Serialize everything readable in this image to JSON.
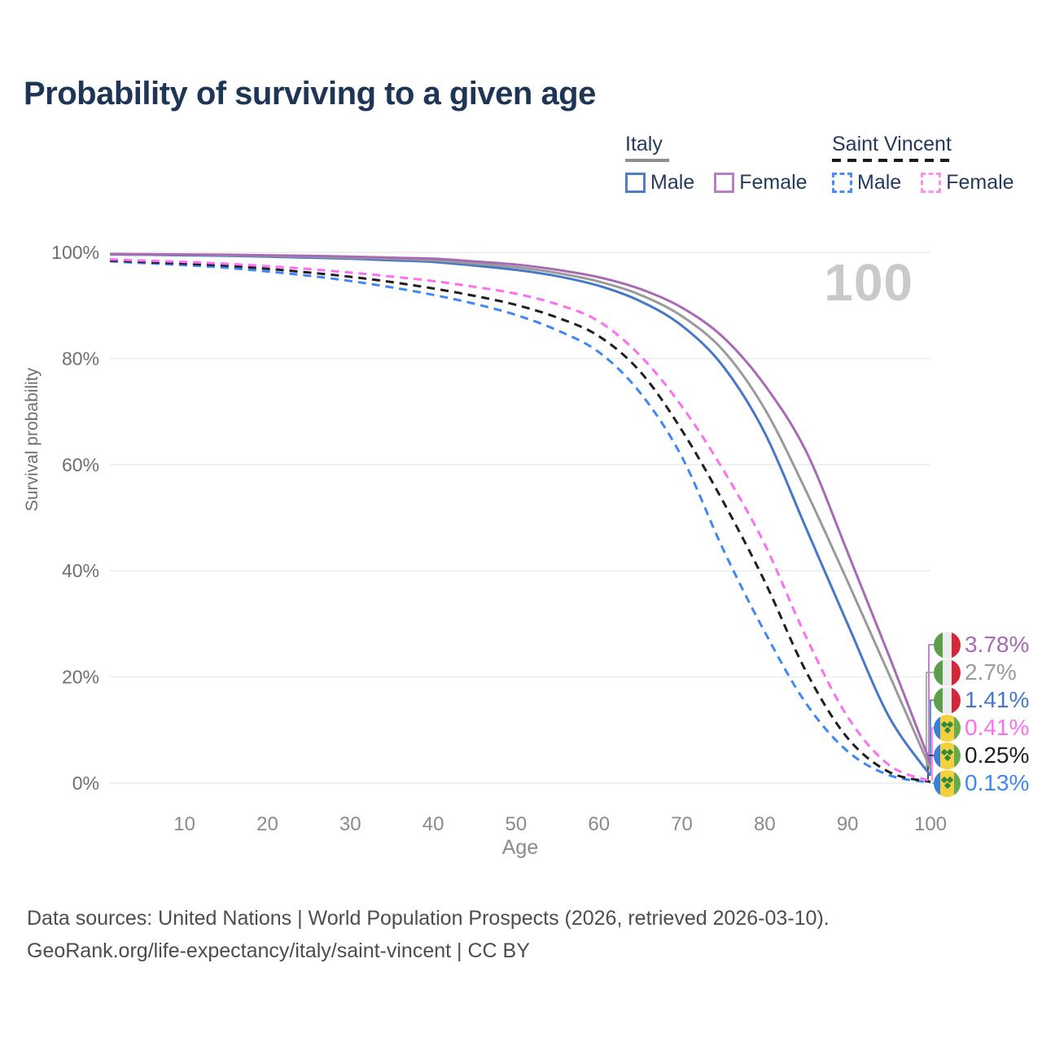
{
  "title": "Probability of surviving to a given age",
  "watermark": "100",
  "legend": {
    "groups": [
      {
        "label": "Italy",
        "line_style": "solid",
        "items": [
          {
            "label": "Male",
            "color": "#4e7fc4"
          },
          {
            "label": "Female",
            "color": "#b77fc4"
          }
        ]
      },
      {
        "label": "Saint Vincent",
        "line_style": "dashed",
        "items": [
          {
            "label": "Male",
            "color": "#4a8ef5"
          },
          {
            "label": "Female",
            "color": "#fb90ef"
          }
        ]
      }
    ]
  },
  "chart_data": {
    "type": "line",
    "title": "Probability of surviving to a given age",
    "xlabel": "Age",
    "ylabel": "Survival probability",
    "xlim": [
      1,
      100
    ],
    "ylim": [
      0,
      100
    ],
    "x_ticks": [
      10,
      20,
      30,
      40,
      50,
      60,
      70,
      80,
      90,
      100
    ],
    "y_ticks": [
      {
        "value": 0,
        "label": "0%"
      },
      {
        "value": 20,
        "label": "20%"
      },
      {
        "value": 40,
        "label": "40%"
      },
      {
        "value": 60,
        "label": "60%"
      },
      {
        "value": 80,
        "label": "80%"
      },
      {
        "value": 100,
        "label": "100%"
      }
    ],
    "grid": "horizontal",
    "legend_position": "top-right",
    "hover_age": "100",
    "x": [
      1,
      5,
      10,
      15,
      20,
      25,
      30,
      35,
      40,
      45,
      50,
      55,
      60,
      65,
      70,
      75,
      80,
      85,
      90,
      95,
      100
    ],
    "series": [
      {
        "name": "Italy Female",
        "country": "Italy",
        "sex": "Female",
        "color": "#a86ab4",
        "dashed": false,
        "flag": "italy",
        "end_label": "3.78%",
        "values": [
          99.7,
          99.65,
          99.6,
          99.55,
          99.45,
          99.35,
          99.2,
          99.0,
          98.8,
          98.3,
          97.7,
          96.7,
          95.3,
          93.1,
          89.6,
          84.0,
          75.0,
          62.5,
          43.5,
          24.0,
          3.78
        ]
      },
      {
        "name": "Italy",
        "country": "Italy",
        "sex": "Both",
        "color": "#9a9a9a",
        "dashed": false,
        "flag": "italy",
        "end_label": "2.7%",
        "values": [
          99.65,
          99.6,
          99.55,
          99.45,
          99.35,
          99.2,
          99.0,
          98.8,
          98.5,
          97.9,
          97.2,
          96.1,
          94.5,
          92.0,
          88.0,
          81.5,
          70.5,
          55.0,
          38.0,
          20.5,
          2.7
        ]
      },
      {
        "name": "Italy Male",
        "country": "Italy",
        "sex": "Male",
        "color": "#4678c8",
        "dashed": false,
        "flag": "italy",
        "end_label": "1.41%",
        "values": [
          99.6,
          99.55,
          99.45,
          99.35,
          99.2,
          99.0,
          98.8,
          98.5,
          98.2,
          97.5,
          96.7,
          95.5,
          93.7,
          90.8,
          86.2,
          78.5,
          66.0,
          48.0,
          30.0,
          12.5,
          1.41
        ]
      },
      {
        "name": "Saint Vincent Female",
        "country": "Saint Vincent",
        "sex": "Female",
        "color": "#fc6ef2",
        "dashed": true,
        "flag": "sv",
        "end_label": "0.41%",
        "values": [
          98.7,
          98.45,
          98.2,
          97.85,
          97.4,
          96.85,
          96.2,
          95.45,
          94.6,
          93.5,
          92.2,
          90.2,
          87.0,
          80.5,
          71.0,
          59.0,
          45.0,
          27.5,
          12.5,
          3.4,
          0.41
        ]
      },
      {
        "name": "Saint Vincent",
        "country": "Saint Vincent",
        "sex": "Both",
        "color": "#1f1f1f",
        "dashed": true,
        "flag": "sv",
        "end_label": "0.25%",
        "values": [
          98.5,
          98.2,
          97.9,
          97.5,
          96.9,
          96.2,
          95.4,
          94.4,
          93.2,
          91.8,
          90.1,
          87.7,
          84.2,
          77.5,
          66.5,
          53.0,
          38.0,
          21.0,
          8.5,
          2.1,
          0.25
        ]
      },
      {
        "name": "Saint Vincent Male",
        "country": "Saint Vincent",
        "sex": "Male",
        "color": "#3f87f2",
        "dashed": true,
        "flag": "sv",
        "end_label": "0.13%",
        "values": [
          98.3,
          98.0,
          97.6,
          97.1,
          96.4,
          95.6,
          94.6,
          93.4,
          92.0,
          90.3,
          88.2,
          85.3,
          81.2,
          73.5,
          61.5,
          44.0,
          28.5,
          15.0,
          6.0,
          1.5,
          0.13
        ]
      }
    ]
  },
  "footer": {
    "line1": "Data sources: United Nations | World Population Prospects (2026, retrieved 2026-03-10).",
    "line2": "GeoRank.org/life-expectancy/italy/saint-vincent | CC BY"
  }
}
